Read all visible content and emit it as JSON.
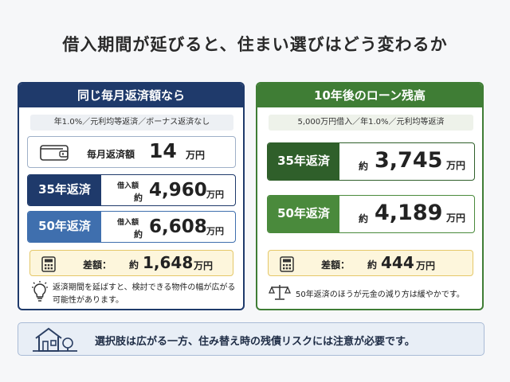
{
  "title": "借入期間が延びると、住まい選びはどう変わるか",
  "left_panel": {
    "header": "同じ毎月返済額なら",
    "note": "年1.0%／元利均等返済／ボーナス返済なし",
    "monthly": {
      "label": "毎月返済額",
      "value": "14",
      "unit": "万円",
      "icon": "wallet-icon"
    },
    "loans": [
      {
        "tag": "35年返済",
        "small_label": "借入額",
        "prefix": "約",
        "value": "4,960",
        "unit": "万円"
      },
      {
        "tag": "50年返済",
        "small_label": "借入額",
        "prefix": "約",
        "value": "6,608",
        "unit": "万円"
      }
    ],
    "diff": {
      "label": "差額：",
      "prefix": "約",
      "value": "1,648",
      "unit": "万円",
      "icon": "calculator-icon"
    },
    "hint": {
      "text": "返済期間を延ばすと、検討できる物件の幅が広がる可能性があります。",
      "icon": "lightbulb-icon"
    }
  },
  "right_panel": {
    "header": "10年後のローン残高",
    "note": "5,000万円借入／年1.0%／元利均等返済",
    "balances": [
      {
        "tag": "35年返済",
        "prefix": "約",
        "value": "3,745",
        "unit": "万円"
      },
      {
        "tag": "50年返済",
        "prefix": "約",
        "value": "4,189",
        "unit": "万円"
      }
    ],
    "diff": {
      "label": "差額：",
      "prefix": "約",
      "value": "444",
      "unit": "万円",
      "icon": "calculator-icon"
    },
    "note_bottom": {
      "text": "50年返済のほうが元金の減り方は緩やかです。",
      "icon": "scale-icon"
    }
  },
  "footer": {
    "text": "選択肢は広がる一方、住み替え時の残債リスクには注意が必要です。",
    "icon": "house-icon"
  },
  "colors": {
    "navy": "#1f3a6b",
    "blue": "#3f6fae",
    "green_dark": "#2f5f2a",
    "green": "#4a8a3c",
    "yellow": "#fdf6dc"
  }
}
